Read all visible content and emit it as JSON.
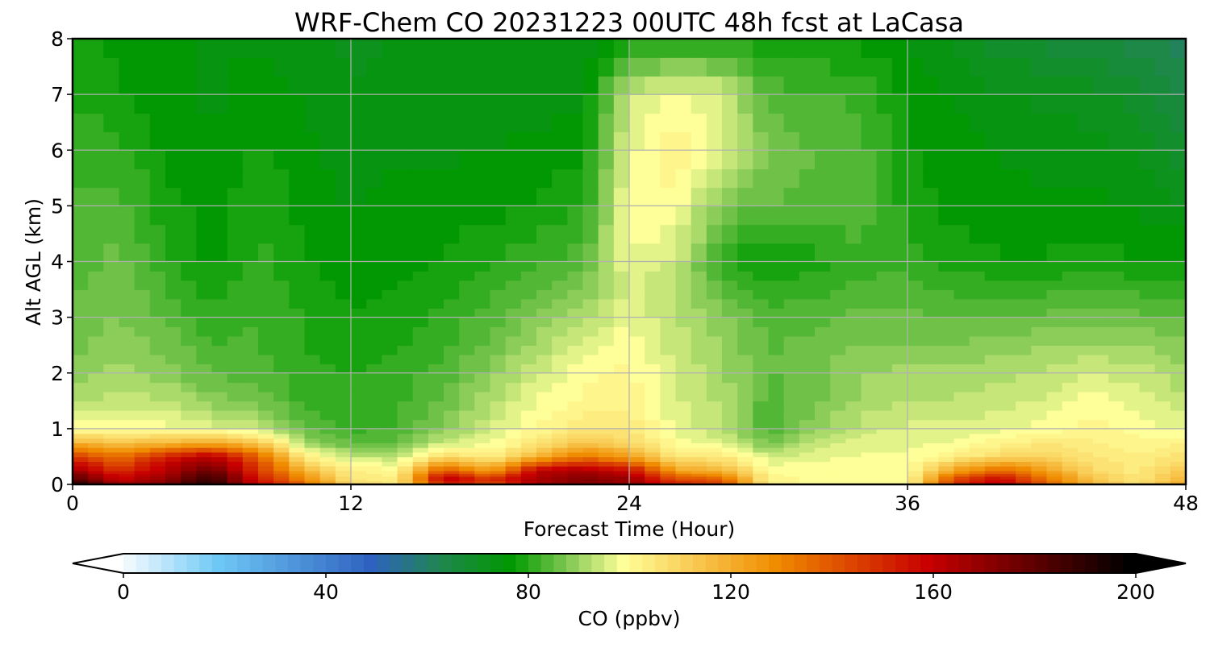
{
  "chart_data": {
    "type": "heatmap",
    "title": "WRF-Chem CO  20231223 00UTC 48h fcst at LaCasa",
    "xlabel": "Forecast Time (Hour)",
    "ylabel": "Alt AGL (km)",
    "xlim": [
      0,
      48
    ],
    "ylim": [
      0,
      8
    ],
    "xticks": [
      0,
      12,
      24,
      36,
      48
    ],
    "yticks": [
      0,
      1,
      2,
      3,
      4,
      5,
      6,
      7,
      8
    ],
    "grid": true,
    "colorbar": {
      "label": "CO  (ppbv)",
      "range": [
        0,
        200
      ],
      "ticks": [
        0,
        40,
        80,
        120,
        160,
        200
      ],
      "extend": "both",
      "stops": [
        {
          "v": 0,
          "c": "#ffffff"
        },
        {
          "v": 20,
          "c": "#6ec8f5"
        },
        {
          "v": 50,
          "c": "#2f62c0"
        },
        {
          "v": 65,
          "c": "#1e8848"
        },
        {
          "v": 78,
          "c": "#009900"
        },
        {
          "v": 90,
          "c": "#8ccd5a"
        },
        {
          "v": 100,
          "c": "#ffff99"
        },
        {
          "v": 130,
          "c": "#f08c00"
        },
        {
          "v": 160,
          "c": "#c80000"
        },
        {
          "v": 200,
          "c": "#000000"
        }
      ]
    },
    "x_hours": [
      0,
      2,
      4,
      6,
      8,
      10,
      12,
      14,
      16,
      18,
      20,
      22,
      24,
      26,
      28,
      30,
      32,
      34,
      36,
      38,
      40,
      42,
      44,
      46,
      48
    ],
    "z_km": [
      0,
      0.1,
      0.25,
      0.5,
      0.75,
      1,
      1.5,
      2,
      2.5,
      3,
      3.5,
      4,
      5,
      6,
      7,
      8
    ],
    "co_ppbv": [
      [
        200,
        170,
        180,
        195,
        160,
        140,
        110,
        105,
        150,
        140,
        165,
        172,
        170,
        155,
        150,
        102,
        101,
        100,
        100,
        150,
        165,
        140,
        118,
        108,
        125
      ],
      [
        185,
        160,
        170,
        190,
        155,
        130,
        106,
        104,
        165,
        150,
        168,
        175,
        170,
        145,
        140,
        102,
        101,
        100,
        100,
        145,
        160,
        135,
        115,
        106,
        120
      ],
      [
        170,
        150,
        165,
        180,
        150,
        120,
        104,
        102,
        145,
        125,
        162,
        168,
        160,
        125,
        120,
        101,
        100,
        100,
        100,
        125,
        140,
        125,
        110,
        105,
        115
      ],
      [
        150,
        135,
        155,
        165,
        140,
        105,
        95,
        95,
        110,
        104,
        120,
        135,
        125,
        106,
        106,
        96,
        98,
        99,
        99,
        104,
        110,
        112,
        106,
        104,
        108
      ],
      [
        120,
        115,
        118,
        122,
        115,
        92,
        86,
        86,
        96,
        98,
        106,
        115,
        110,
        100,
        97,
        88,
        95,
        98,
        98,
        99,
        103,
        106,
        104,
        102,
        104
      ],
      [
        100,
        100,
        100,
        98,
        95,
        86,
        83,
        84,
        90,
        96,
        102,
        106,
        106,
        98,
        94,
        84,
        90,
        95,
        97,
        97,
        98,
        100,
        102,
        100,
        98
      ],
      [
        93,
        95,
        94,
        90,
        88,
        83,
        82,
        83,
        87,
        93,
        99,
        102,
        103,
        97,
        93,
        85,
        88,
        92,
        94,
        94,
        95,
        97,
        100,
        98,
        94
      ],
      [
        90,
        92,
        90,
        86,
        85,
        82,
        81,
        82,
        85,
        90,
        96,
        100,
        102,
        96,
        92,
        86,
        88,
        91,
        92,
        92,
        93,
        94,
        96,
        95,
        92
      ],
      [
        88,
        90,
        88,
        84,
        84,
        81,
        80,
        81,
        83,
        87,
        92,
        97,
        101,
        95,
        91,
        86,
        87,
        89,
        89,
        89,
        90,
        91,
        92,
        91,
        89
      ],
      [
        87,
        89,
        86,
        82,
        84,
        81,
        79,
        80,
        82,
        85,
        89,
        93,
        98,
        94,
        90,
        85,
        85,
        87,
        87,
        86,
        86,
        87,
        88,
        87,
        86
      ],
      [
        86,
        88,
        84,
        80,
        83,
        80,
        78,
        79,
        80,
        83,
        86,
        89,
        97,
        93,
        86,
        82,
        83,
        85,
        85,
        83,
        83,
        83,
        84,
        83,
        83
      ],
      [
        85,
        87,
        82,
        78,
        82,
        79,
        77,
        78,
        79,
        81,
        83,
        85,
        99,
        95,
        82,
        78,
        80,
        82,
        83,
        80,
        79,
        79,
        80,
        79,
        79
      ],
      [
        84,
        85,
        80,
        77,
        81,
        78,
        76,
        77,
        77,
        78,
        79,
        81,
        100,
        101,
        88,
        86,
        86,
        86,
        80,
        78,
        77,
        77,
        77,
        76,
        74
      ],
      [
        83,
        82,
        78,
        76,
        79,
        77,
        75,
        76,
        76,
        76,
        77,
        78,
        98,
        103,
        98,
        88,
        86,
        85,
        79,
        77,
        76,
        75,
        75,
        73,
        70
      ],
      [
        81,
        79,
        77,
        76,
        77,
        76,
        74,
        75,
        75,
        75,
        75,
        76,
        95,
        100,
        96,
        85,
        84,
        83,
        78,
        76,
        74,
        73,
        72,
        70,
        66
      ],
      [
        79,
        78,
        77,
        76,
        76,
        75,
        73,
        74,
        74,
        74,
        74,
        75,
        78,
        80,
        80,
        80,
        79,
        78,
        76,
        73,
        70,
        68,
        67,
        65,
        62
      ]
    ]
  }
}
